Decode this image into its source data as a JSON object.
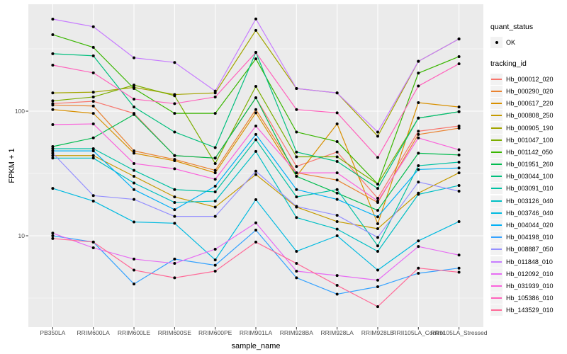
{
  "figure": {
    "y_ticks": [
      {
        "label": "100",
        "value": 100
      },
      {
        "label": "10",
        "value": 10
      }
    ]
  },
  "legend": {
    "quant_status_title": "quant_status",
    "quant_status_items": [
      {
        "label": "OK"
      }
    ],
    "tracking_id_title": "tracking_id"
  },
  "chart_data": {
    "type": "line",
    "title": "",
    "xlabel": "sample_name",
    "ylabel": "FPKM + 1",
    "y_scale": "log10",
    "ylim": [
      1.85,
      721
    ],
    "y_major_gridlines": [
      10,
      100
    ],
    "y_minor_gridlines": [
      3.162,
      31.62,
      316.2
    ],
    "grid": "on",
    "legend_position": "right",
    "panel_bg": "#EBEBEB",
    "grid_color": "#FFFFFF",
    "point_color": "#000000",
    "tick_color": "#333333",
    "x_categories": [
      "PB350LA",
      "RRIM600LA",
      "RRIM600LE",
      "RRIM600SE",
      "RRIM600PE",
      "RRIM901LA",
      "RRIM928BA",
      "RRIM928LA",
      "RRIM928LB",
      "RRII105LA_Control",
      "RRII105LA_Stressed"
    ],
    "series": [
      {
        "name": "Hb_000012_020",
        "color": "#F8766D",
        "values": [
          115,
          120,
          96,
          44,
          42,
          128,
          36,
          47,
          20,
          69,
          76
        ]
      },
      {
        "name": "Hb_000290_020",
        "color": "#EA8331",
        "values": [
          112,
          110,
          48,
          41,
          33.5,
          103,
          32,
          28,
          18.5,
          65,
          73
        ]
      },
      {
        "name": "Hb_000617_220",
        "color": "#D89000",
        "values": [
          103,
          96,
          46,
          40,
          32,
          97,
          30,
          79,
          12.5,
          117,
          108
        ]
      },
      {
        "name": "Hb_000808_250",
        "color": "#C49A00",
        "values": [
          44,
          44,
          30,
          20.5,
          17,
          31,
          17,
          13,
          11.4,
          22,
          32
        ]
      },
      {
        "name": "Hb_000905_190",
        "color": "#A3A500",
        "values": [
          140,
          142,
          155,
          136,
          140,
          445,
          152,
          140,
          63,
          251,
          380
        ]
      },
      {
        "name": "Hb_001047_100",
        "color": "#7CAE00",
        "values": [
          121,
          130,
          162,
          133,
          38,
          158,
          43,
          43,
          26,
          88,
          99
        ]
      },
      {
        "name": "Hb_001142_050",
        "color": "#39B600",
        "values": [
          411,
          325,
          152,
          96,
          96,
          263,
          68,
          57,
          26,
          202,
          274
        ]
      },
      {
        "name": "Hb_001951_260",
        "color": "#00BB4E",
        "values": [
          52,
          61,
          94,
          44,
          42,
          128,
          30,
          22,
          16,
          46,
          44.5
        ]
      },
      {
        "name": "Hb_003044_100",
        "color": "#00BF7D",
        "values": [
          289,
          278,
          108,
          68,
          51,
          296,
          47,
          39.5,
          24,
          88,
          99
        ]
      },
      {
        "name": "Hb_003091_010",
        "color": "#00C1A3",
        "values": [
          50,
          50,
          33.5,
          23.5,
          22.5,
          59,
          20.5,
          23.5,
          8.3,
          36.5,
          39
        ]
      },
      {
        "name": "Hb_003126_040",
        "color": "#00BFC4",
        "values": [
          42,
          42,
          26.5,
          18.5,
          19,
          47.5,
          14,
          11.3,
          7.5,
          21.5,
          25.3
        ]
      },
      {
        "name": "Hb_003746_040",
        "color": "#00BAE0",
        "values": [
          24,
          19,
          12.9,
          12.6,
          6.4,
          19.5,
          7.5,
          10,
          5.3,
          9.1,
          13
        ]
      },
      {
        "name": "Hb_004044_020",
        "color": "#00B0F6",
        "values": [
          48,
          48,
          23.5,
          16.2,
          25,
          65,
          23.5,
          19.6,
          14.2,
          34,
          35
        ]
      },
      {
        "name": "Hb_004198_010",
        "color": "#35A2FF",
        "values": [
          10,
          8.9,
          4.1,
          6.5,
          5.8,
          11.1,
          4.6,
          3.4,
          3.9,
          5,
          5.5
        ]
      },
      {
        "name": "Hb_008887_050",
        "color": "#9590FF",
        "values": [
          46,
          21,
          19.6,
          14.3,
          14.3,
          33,
          17.2,
          14.6,
          9.7,
          27,
          22.8
        ]
      },
      {
        "name": "Hb_011848_010",
        "color": "#C77CFF",
        "values": [
          548,
          476,
          268,
          246,
          145,
          550,
          152,
          140,
          68,
          251,
          380
        ]
      },
      {
        "name": "Hb_012092_010",
        "color": "#E76BF3",
        "values": [
          10.5,
          8,
          6.5,
          6,
          7.8,
          12.7,
          5.2,
          4.8,
          4.4,
          8.2,
          7
        ]
      },
      {
        "name": "Hb_031939_010",
        "color": "#FA62DB",
        "values": [
          78,
          79,
          38,
          34.5,
          28.4,
          76,
          32,
          32,
          19,
          61,
          49
        ]
      },
      {
        "name": "Hb_105386_010",
        "color": "#FF62BC",
        "values": [
          234,
          203,
          125,
          115,
          130,
          296,
          103,
          97,
          42.5,
          159,
          240
        ]
      },
      {
        "name": "Hb_143529_010",
        "color": "#FF6A98",
        "values": [
          9.5,
          8.9,
          5.3,
          4.6,
          5.2,
          8.9,
          6,
          4,
          2.7,
          5.5,
          5.1
        ]
      }
    ],
    "quant_status": {
      "label": "OK",
      "marker": "filled-point"
    }
  }
}
